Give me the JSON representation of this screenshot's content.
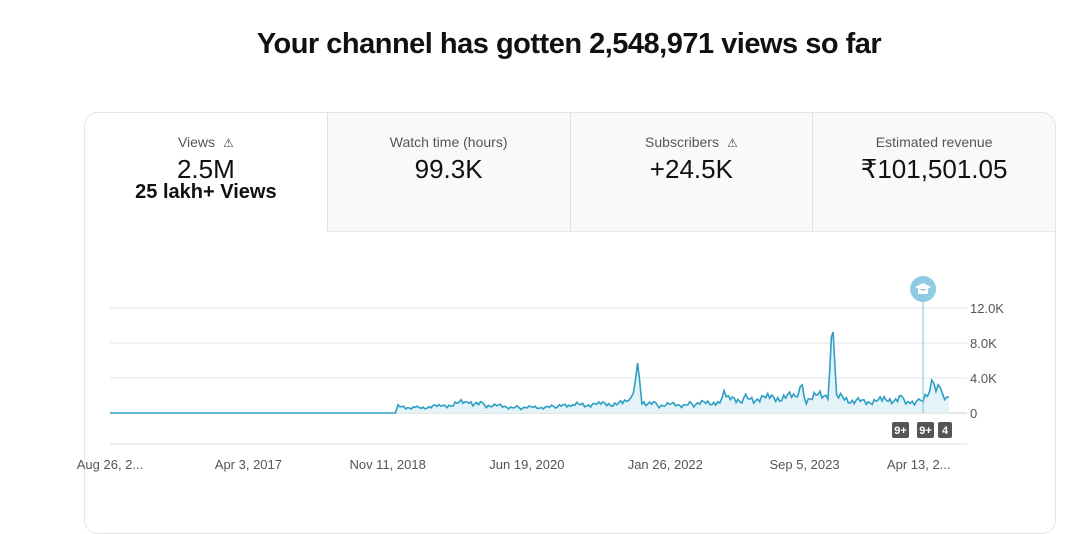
{
  "heading": "Your channel has gotten 2,548,971 views so far",
  "tabs": [
    {
      "label": "Views",
      "value": "2.5M",
      "sub": "25 lakh+ Views",
      "icon": "warning-icon"
    },
    {
      "label": "Watch time (hours)",
      "value": "99.3K"
    },
    {
      "label": "Subscribers",
      "value": "+24.5K",
      "icon": "warning-icon"
    },
    {
      "label": "Estimated revenue",
      "value": "₹101,501.05"
    }
  ],
  "chart_data": {
    "type": "line",
    "title": "Views",
    "accent": "#2e9ec4",
    "xlim": [
      2015.65,
      2025.35
    ],
    "ylim": [
      0,
      12000
    ],
    "yticks": [
      {
        "v": 0,
        "label": "0"
      },
      {
        "v": 4000,
        "label": "4.0K"
      },
      {
        "v": 8000,
        "label": "8.0K"
      },
      {
        "v": 12000,
        "label": "12.0K"
      }
    ],
    "xticks": [
      {
        "v": 2015.65,
        "label": "Aug 26, 2..."
      },
      {
        "v": 2017.25,
        "label": "Apr 3, 2017"
      },
      {
        "v": 2018.86,
        "label": "Nov 11, 2018"
      },
      {
        "v": 2020.47,
        "label": "Jun 19, 2020"
      },
      {
        "v": 2022.07,
        "label": "Jan 26, 2022"
      },
      {
        "v": 2023.68,
        "label": "Sep 5, 2023"
      },
      {
        "v": 2025.0,
        "label": "Apr 13, 2..."
      }
    ],
    "points": [
      [
        2015.65,
        0
      ],
      [
        2018.95,
        0
      ],
      [
        2018.98,
        700
      ],
      [
        2019.2,
        600
      ],
      [
        2019.5,
        800
      ],
      [
        2019.8,
        1300
      ],
      [
        2020.0,
        900
      ],
      [
        2020.4,
        600
      ],
      [
        2020.8,
        700
      ],
      [
        2021.0,
        900
      ],
      [
        2021.3,
        1000
      ],
      [
        2021.6,
        1100
      ],
      [
        2021.7,
        1800
      ],
      [
        2021.75,
        5500
      ],
      [
        2021.8,
        1300
      ],
      [
        2022.0,
        900
      ],
      [
        2022.4,
        1000
      ],
      [
        2022.7,
        1300
      ],
      [
        2022.75,
        2300
      ],
      [
        2022.8,
        1500
      ],
      [
        2023.0,
        1600
      ],
      [
        2023.3,
        1700
      ],
      [
        2023.6,
        1900
      ],
      [
        2023.63,
        4000
      ],
      [
        2023.7,
        1600
      ],
      [
        2023.95,
        2200
      ],
      [
        2024.01,
        10000
      ],
      [
        2024.05,
        1800
      ],
      [
        2024.3,
        1300
      ],
      [
        2024.6,
        1400
      ],
      [
        2024.8,
        1700
      ],
      [
        2024.9,
        1200
      ],
      [
        2025.05,
        1800
      ],
      [
        2025.2,
        3800
      ],
      [
        2025.3,
        2000
      ],
      [
        2025.35,
        1800
      ]
    ],
    "badges": [
      "9+",
      "9+",
      "4"
    ],
    "marker_x": 2025.05
  }
}
